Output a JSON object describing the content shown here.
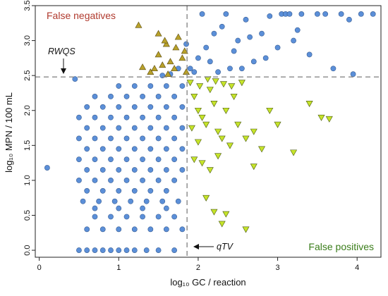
{
  "chart_data": {
    "type": "scatter",
    "title": "",
    "xlabel": "log₁₀ GC / reaction",
    "ylabel": "log₁₀ MPN / 100 mL",
    "xlim": [
      -0.05,
      4.3
    ],
    "ylim": [
      -0.1,
      3.5
    ],
    "xticks": [
      0,
      1,
      2,
      3,
      4
    ],
    "yticks": [
      0.0,
      0.5,
      1.0,
      1.5,
      2.0,
      2.5,
      3.0,
      3.5
    ],
    "grid": false,
    "thresholds": {
      "qTV": 1.86,
      "RWQS": 2.48
    },
    "annotations": {
      "rwqs_label": "RWQS",
      "qtv_label": "qTV"
    },
    "region_labels": {
      "false_negatives": "False negatives",
      "false_positives": "False positives"
    },
    "colors": {
      "true_points": "#5b8fd8",
      "false_negative_points": "#b8a12a",
      "false_positive_points": "#c6e42a",
      "false_negatives_text": "#b03a2e",
      "false_positives_text": "#3a7d1a",
      "threshold_lines": "#888888"
    },
    "series": [
      {
        "marker": "circle",
        "points": [
          [
            0.1,
            1.18
          ],
          [
            0.45,
            2.45
          ],
          [
            0.5,
            0.0
          ],
          [
            0.6,
            0.0
          ],
          [
            0.7,
            0.0
          ],
          [
            0.8,
            0.0
          ],
          [
            0.9,
            0.0
          ],
          [
            1.0,
            0.0
          ],
          [
            1.1,
            0.0
          ],
          [
            1.2,
            0.0
          ],
          [
            1.35,
            0.0
          ],
          [
            1.5,
            0.0
          ],
          [
            1.7,
            0.0
          ],
          [
            0.6,
            0.3
          ],
          [
            0.8,
            0.3
          ],
          [
            1.0,
            0.3
          ],
          [
            1.2,
            0.3
          ],
          [
            1.4,
            0.3
          ],
          [
            1.6,
            0.3
          ],
          [
            1.8,
            0.3
          ],
          [
            0.7,
            0.48
          ],
          [
            0.9,
            0.48
          ],
          [
            1.1,
            0.48
          ],
          [
            1.3,
            0.48
          ],
          [
            1.5,
            0.48
          ],
          [
            1.7,
            0.48
          ],
          [
            0.7,
            0.6
          ],
          [
            1.0,
            0.6
          ],
          [
            1.3,
            0.6
          ],
          [
            1.6,
            0.6
          ],
          [
            0.55,
            0.7
          ],
          [
            0.75,
            0.7
          ],
          [
            0.95,
            0.7
          ],
          [
            1.15,
            0.7
          ],
          [
            1.35,
            0.7
          ],
          [
            1.55,
            0.7
          ],
          [
            1.75,
            0.7
          ],
          [
            0.6,
            0.85
          ],
          [
            0.8,
            0.85
          ],
          [
            1.0,
            0.85
          ],
          [
            1.2,
            0.85
          ],
          [
            1.4,
            0.85
          ],
          [
            1.6,
            0.85
          ],
          [
            0.5,
            1.0
          ],
          [
            0.7,
            1.0
          ],
          [
            0.9,
            1.0
          ],
          [
            1.1,
            1.0
          ],
          [
            1.3,
            1.0
          ],
          [
            1.5,
            1.0
          ],
          [
            1.7,
            1.0
          ],
          [
            0.6,
            1.15
          ],
          [
            0.8,
            1.15
          ],
          [
            1.0,
            1.15
          ],
          [
            1.2,
            1.15
          ],
          [
            1.4,
            1.15
          ],
          [
            1.6,
            1.15
          ],
          [
            1.8,
            1.15
          ],
          [
            0.5,
            1.3
          ],
          [
            0.7,
            1.3
          ],
          [
            0.9,
            1.3
          ],
          [
            1.1,
            1.3
          ],
          [
            1.3,
            1.3
          ],
          [
            1.5,
            1.3
          ],
          [
            1.7,
            1.3
          ],
          [
            0.6,
            1.45
          ],
          [
            0.8,
            1.45
          ],
          [
            1.0,
            1.45
          ],
          [
            1.2,
            1.45
          ],
          [
            1.4,
            1.45
          ],
          [
            1.6,
            1.45
          ],
          [
            1.8,
            1.45
          ],
          [
            0.5,
            1.6
          ],
          [
            0.7,
            1.6
          ],
          [
            0.9,
            1.6
          ],
          [
            1.1,
            1.6
          ],
          [
            1.3,
            1.6
          ],
          [
            1.5,
            1.6
          ],
          [
            1.7,
            1.6
          ],
          [
            0.6,
            1.75
          ],
          [
            0.8,
            1.75
          ],
          [
            1.0,
            1.75
          ],
          [
            1.2,
            1.75
          ],
          [
            1.4,
            1.75
          ],
          [
            1.6,
            1.75
          ],
          [
            1.8,
            1.75
          ],
          [
            0.5,
            1.9
          ],
          [
            0.7,
            1.9
          ],
          [
            0.9,
            1.9
          ],
          [
            1.1,
            1.9
          ],
          [
            1.3,
            1.9
          ],
          [
            1.5,
            1.9
          ],
          [
            1.7,
            1.9
          ],
          [
            0.6,
            2.05
          ],
          [
            0.8,
            2.05
          ],
          [
            1.0,
            2.05
          ],
          [
            1.2,
            2.05
          ],
          [
            1.4,
            2.05
          ],
          [
            1.6,
            2.05
          ],
          [
            1.8,
            2.05
          ],
          [
            0.7,
            2.2
          ],
          [
            0.9,
            2.2
          ],
          [
            1.1,
            2.2
          ],
          [
            1.3,
            2.2
          ],
          [
            1.5,
            2.2
          ],
          [
            1.7,
            2.2
          ],
          [
            1.0,
            2.35
          ],
          [
            1.2,
            2.35
          ],
          [
            1.4,
            2.35
          ],
          [
            1.6,
            2.35
          ],
          [
            1.8,
            2.35
          ],
          [
            1.55,
            2.5
          ],
          [
            1.65,
            2.52
          ],
          [
            1.75,
            2.6
          ],
          [
            1.85,
            2.95
          ],
          [
            1.9,
            2.6
          ],
          [
            2.0,
            2.75
          ],
          [
            2.1,
            2.9
          ],
          [
            2.2,
            3.1
          ],
          [
            2.3,
            3.2
          ],
          [
            2.4,
            2.6
          ],
          [
            2.5,
            3.0
          ],
          [
            2.6,
            3.3
          ],
          [
            2.7,
            2.7
          ],
          [
            2.8,
            3.1
          ],
          [
            2.9,
            3.35
          ],
          [
            3.0,
            2.9
          ],
          [
            3.05,
            3.38
          ],
          [
            3.1,
            3.38
          ],
          [
            3.15,
            3.38
          ],
          [
            3.2,
            3.0
          ],
          [
            3.3,
            3.38
          ],
          [
            3.4,
            2.8
          ],
          [
            3.5,
            3.38
          ],
          [
            3.6,
            3.38
          ],
          [
            3.7,
            2.6
          ],
          [
            3.8,
            3.38
          ],
          [
            3.9,
            3.3
          ],
          [
            3.95,
            2.52
          ],
          [
            4.05,
            3.38
          ],
          [
            4.2,
            3.38
          ],
          [
            2.25,
            2.55
          ],
          [
            2.45,
            2.85
          ],
          [
            2.65,
            3.05
          ],
          [
            2.85,
            2.75
          ],
          [
            3.25,
            3.15
          ],
          [
            2.05,
            3.38
          ],
          [
            2.35,
            3.38
          ],
          [
            2.55,
            2.6
          ],
          [
            2.15,
            2.7
          ],
          [
            1.95,
            2.55
          ]
        ]
      },
      {
        "marker": "triangle-up",
        "points": [
          [
            1.25,
            3.22
          ],
          [
            1.3,
            2.62
          ],
          [
            1.4,
            2.55
          ],
          [
            1.5,
            2.8
          ],
          [
            1.55,
            2.65
          ],
          [
            1.6,
            2.95
          ],
          [
            1.65,
            2.7
          ],
          [
            1.7,
            2.6
          ],
          [
            1.75,
            3.05
          ],
          [
            1.8,
            2.75
          ],
          [
            1.85,
            2.55
          ],
          [
            1.45,
            2.6
          ],
          [
            1.62,
            2.52
          ],
          [
            1.72,
            2.9
          ],
          [
            1.58,
            3.0
          ],
          [
            1.5,
            3.1
          ],
          [
            1.83,
            2.85
          ]
        ]
      },
      {
        "marker": "triangle-down",
        "points": [
          [
            1.9,
            2.4
          ],
          [
            1.95,
            2.2
          ],
          [
            2.0,
            2.0
          ],
          [
            2.05,
            1.9
          ],
          [
            2.1,
            1.8
          ],
          [
            2.15,
            2.3
          ],
          [
            2.2,
            2.1
          ],
          [
            2.25,
            1.7
          ],
          [
            2.3,
            1.6
          ],
          [
            2.35,
            2.0
          ],
          [
            2.4,
            1.5
          ],
          [
            2.45,
            2.2
          ],
          [
            2.5,
            1.8
          ],
          [
            2.55,
            2.4
          ],
          [
            2.6,
            1.6
          ],
          [
            2.7,
            1.7
          ],
          [
            2.8,
            1.45
          ],
          [
            2.9,
            2.0
          ],
          [
            3.0,
            1.8
          ],
          [
            3.2,
            1.4
          ],
          [
            3.4,
            2.1
          ],
          [
            3.55,
            1.9
          ],
          [
            3.65,
            1.88
          ],
          [
            2.1,
            0.75
          ],
          [
            2.2,
            0.55
          ],
          [
            2.3,
            0.38
          ],
          [
            2.35,
            0.52
          ],
          [
            1.95,
            1.3
          ],
          [
            2.05,
            1.25
          ],
          [
            2.15,
            1.15
          ],
          [
            2.25,
            1.35
          ],
          [
            2.6,
            0.3
          ],
          [
            2.7,
            1.2
          ],
          [
            2.0,
            1.55
          ],
          [
            1.92,
            1.75
          ],
          [
            2.02,
            2.35
          ],
          [
            2.12,
            2.45
          ],
          [
            2.22,
            2.42
          ],
          [
            2.32,
            2.38
          ],
          [
            2.42,
            2.35
          ]
        ]
      }
    ]
  }
}
